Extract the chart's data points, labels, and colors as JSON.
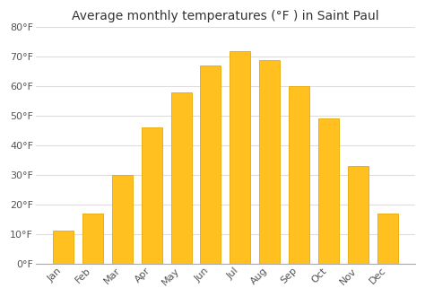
{
  "title": "Average monthly temperatures (°F ) in Saint Paul",
  "months": [
    "Jan",
    "Feb",
    "Mar",
    "Apr",
    "May",
    "Jun",
    "Jul",
    "Aug",
    "Sep",
    "Oct",
    "Nov",
    "Dec"
  ],
  "values": [
    11,
    17,
    30,
    46,
    58,
    67,
    72,
    69,
    60,
    49,
    33,
    17
  ],
  "bar_color": "#FFC020",
  "bar_edge_color": "#E8A800",
  "background_color": "#ffffff",
  "grid_color": "#dddddd",
  "ylim": [
    0,
    80
  ],
  "yticks": [
    0,
    10,
    20,
    30,
    40,
    50,
    60,
    70,
    80
  ],
  "ytick_labels": [
    "0°F",
    "10°F",
    "20°F",
    "30°F",
    "40°F",
    "50°F",
    "60°F",
    "70°F",
    "80°F"
  ],
  "title_fontsize": 10,
  "tick_fontsize": 8
}
